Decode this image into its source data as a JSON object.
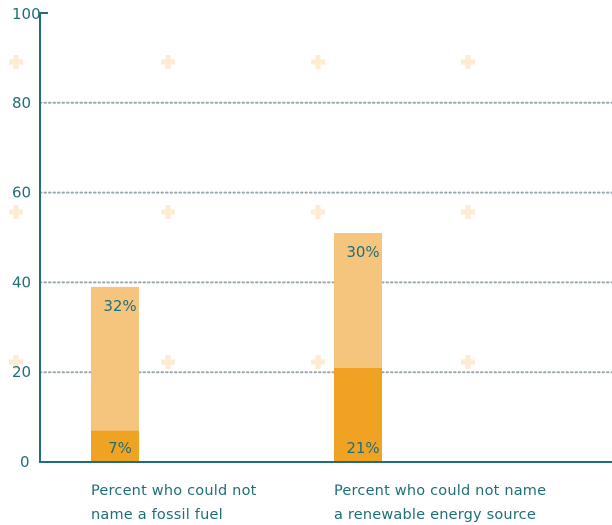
{
  "chart_data": {
    "type": "bar",
    "stacked": true,
    "ylim": [
      0,
      100
    ],
    "yticks": [
      "0",
      "20",
      "40",
      "60",
      "80",
      "100"
    ],
    "ytick_values": [
      0,
      20,
      40,
      60,
      80,
      100
    ],
    "grid": "horizontal dotted",
    "categories": [
      [
        "Percent who could not",
        "name a fossil fuel"
      ],
      [
        "Percent who could not name",
        "a renewable energy source"
      ]
    ],
    "series": [
      {
        "values": [
          7,
          21
        ],
        "labels": [
          "7%",
          "21%"
        ],
        "color": "#f0a323"
      },
      {
        "values": [
          32,
          30
        ],
        "labels": [
          "32%",
          "30%"
        ],
        "color": "#f6c57d"
      }
    ]
  },
  "colors": {
    "axis": "#1f6f78",
    "grid": "#9aa9ad",
    "text": "#1f6f78",
    "watermark": "#fdebd2"
  }
}
